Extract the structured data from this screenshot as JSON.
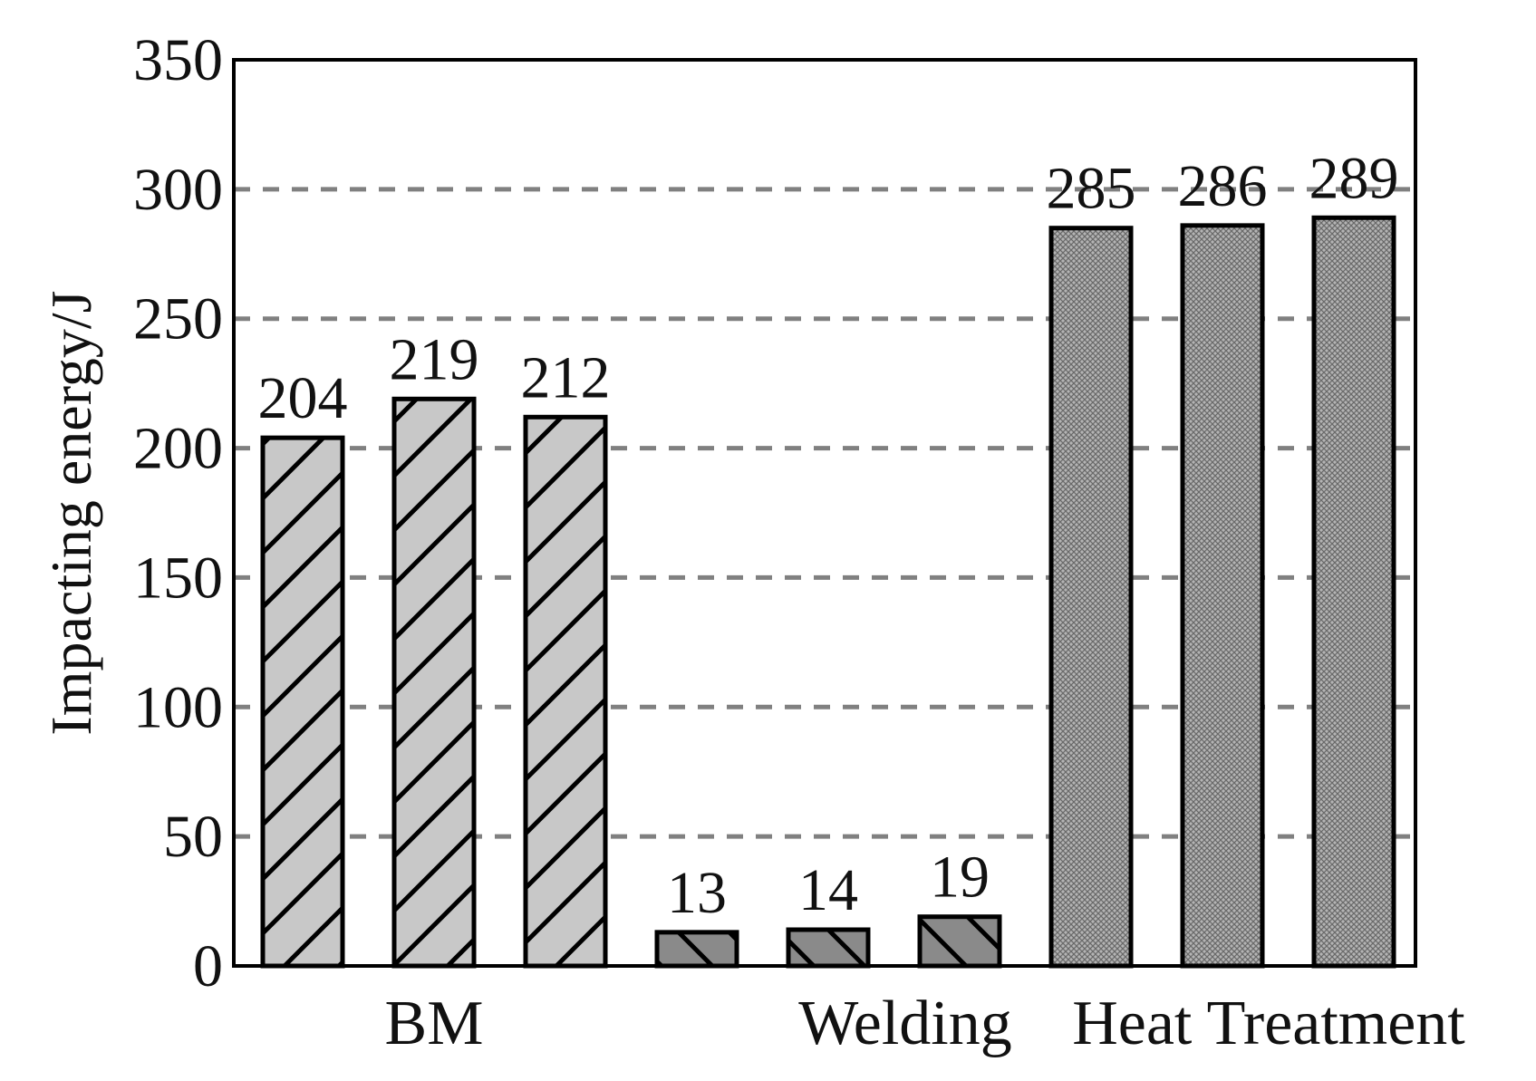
{
  "chart_data": {
    "type": "bar",
    "ylabel": "Impacting energy/J",
    "xlabel": "",
    "ylim": [
      0,
      350
    ],
    "yticks": [
      "0",
      "50",
      "100",
      "150",
      "200",
      "250",
      "300",
      "350"
    ],
    "grid": "horizontal dashed",
    "groups": [
      {
        "label": "BM",
        "values": [
          204,
          219,
          212
        ],
        "labels": [
          "204",
          "219",
          "212"
        ],
        "pattern": "hatch-forward",
        "color": "#c8c8c8"
      },
      {
        "label": "Welding",
        "values": [
          13,
          14,
          19
        ],
        "labels": [
          "13",
          "14",
          "19"
        ],
        "pattern": "hatch-backward",
        "color": "#8a8a8a"
      },
      {
        "label": "Heat Treatment",
        "values": [
          285,
          286,
          289
        ],
        "labels": [
          "285",
          "286",
          "289"
        ],
        "pattern": "crosshatch-dense",
        "color": "#a8a8a8"
      }
    ]
  }
}
